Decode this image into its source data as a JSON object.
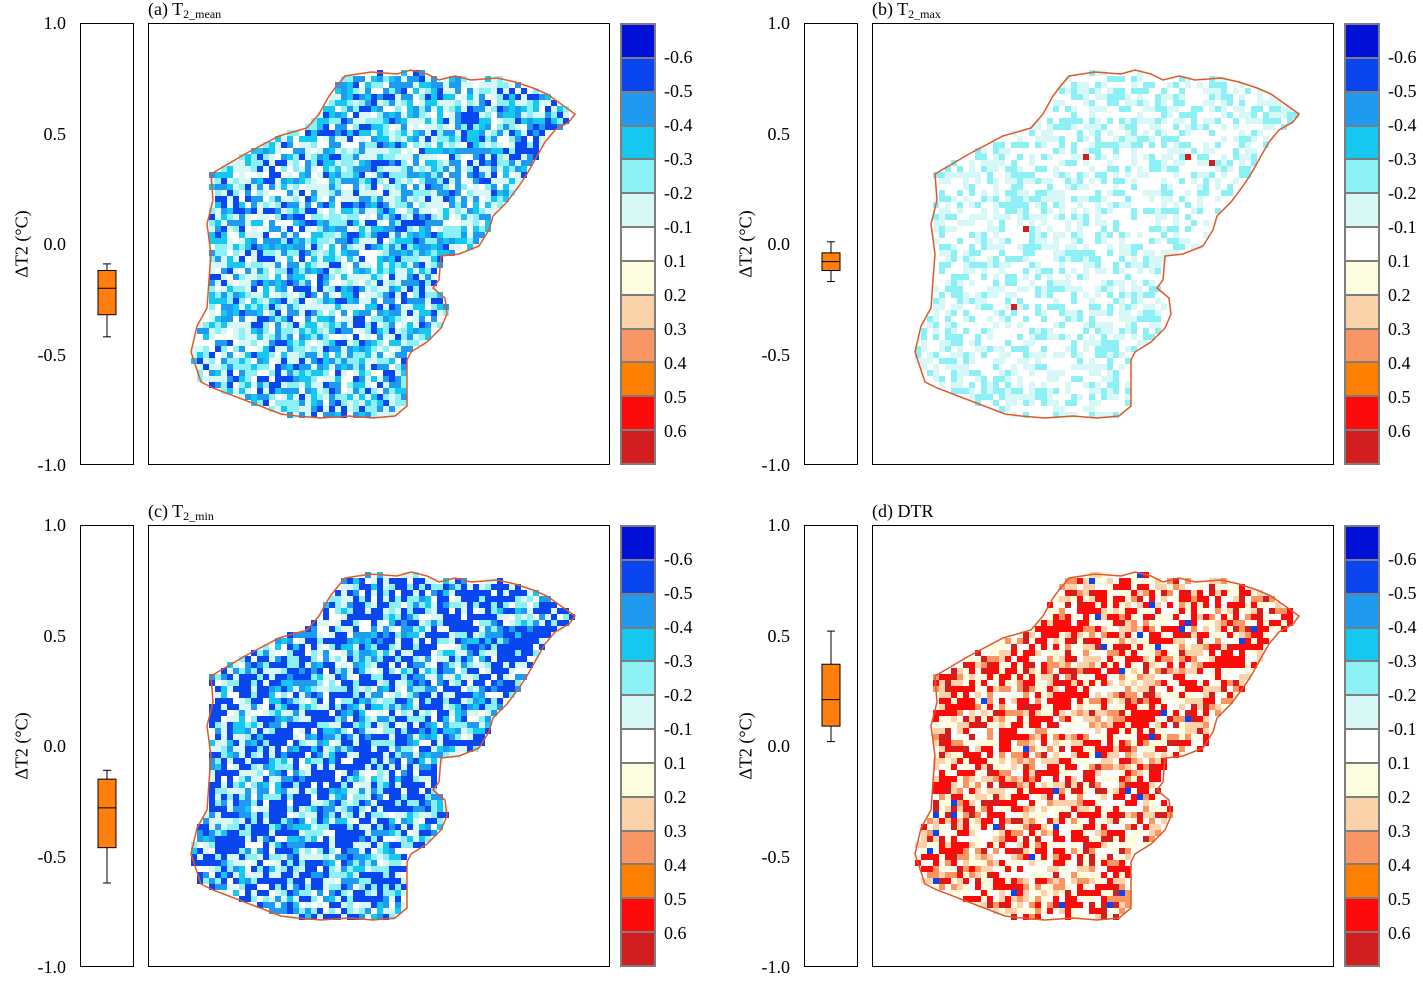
{
  "chart_data": [
    {
      "type": "boxplot-map",
      "title": "(a) T",
      "title_sub": "2_mean",
      "ylabel": "ΔT2 (°C)",
      "yticks": [
        "1.0",
        "0.5",
        "0.0",
        "-0.5",
        "-1.0"
      ],
      "ylim": [
        -1.0,
        1.0
      ],
      "box": {
        "min": -0.42,
        "q1": -0.32,
        "median": -0.2,
        "q3": -0.12,
        "max": -0.09
      },
      "map_tone": "cool",
      "legend": [
        "-0.6",
        "-0.5",
        "-0.4",
        "-0.3",
        "-0.2",
        "-0.1",
        "0.1",
        "0.2",
        "0.3",
        "0.4",
        "0.5",
        "0.6"
      ]
    },
    {
      "type": "boxplot-map",
      "title": "(b) T",
      "title_sub": "2_max",
      "ylabel": "ΔT2 (°C)",
      "yticks": [
        "1.0",
        "0.5",
        "0.0",
        "-0.5",
        "-1.0"
      ],
      "ylim": [
        -1.0,
        1.0
      ],
      "box": {
        "min": -0.17,
        "q1": -0.12,
        "median": -0.08,
        "q3": -0.04,
        "max": 0.01
      },
      "map_tone": "pale",
      "legend": [
        "-0.6",
        "-0.5",
        "-0.4",
        "-0.3",
        "-0.2",
        "-0.1",
        "0.1",
        "0.2",
        "0.3",
        "0.4",
        "0.5",
        "0.6"
      ]
    },
    {
      "type": "boxplot-map",
      "title": "(c) T",
      "title_sub": "2_min",
      "ylabel": "ΔT2 (°C)",
      "yticks": [
        "1.0",
        "0.5",
        "0.0",
        "-0.5",
        "-1.0"
      ],
      "ylim": [
        -1.0,
        1.0
      ],
      "box": {
        "min": -0.62,
        "q1": -0.46,
        "median": -0.28,
        "q3": -0.15,
        "max": -0.11
      },
      "map_tone": "deep",
      "legend": [
        "-0.6",
        "-0.5",
        "-0.4",
        "-0.3",
        "-0.2",
        "-0.1",
        "0.1",
        "0.2",
        "0.3",
        "0.4",
        "0.5",
        "0.6"
      ]
    },
    {
      "type": "boxplot-map",
      "title": "(d) DTR",
      "title_sub": "",
      "ylabel": "ΔT2 (°C)",
      "yticks": [
        "1.0",
        "0.5",
        "0.0",
        "-0.5",
        "-1.0"
      ],
      "ylim": [
        -1.0,
        1.0
      ],
      "box": {
        "min": 0.02,
        "q1": 0.09,
        "median": 0.21,
        "q3": 0.37,
        "max": 0.52
      },
      "map_tone": "warm",
      "legend": [
        "-0.6",
        "-0.5",
        "-0.4",
        "-0.3",
        "-0.2",
        "-0.1",
        "0.1",
        "0.2",
        "0.3",
        "0.4",
        "0.5",
        "0.6"
      ]
    }
  ],
  "colors": {
    "scale": [
      "#0010d8",
      "#0a46f0",
      "#1e9bf0",
      "#14c8f0",
      "#8cf0f5",
      "#d8f8f8",
      "#ffffff",
      "#fffde0",
      "#fcd2aa",
      "#fa9664",
      "#ff7f00",
      "#ff0a0a",
      "#d21e1e"
    ],
    "box_fill": "#ff7f0e",
    "outline": "#e0582a"
  }
}
